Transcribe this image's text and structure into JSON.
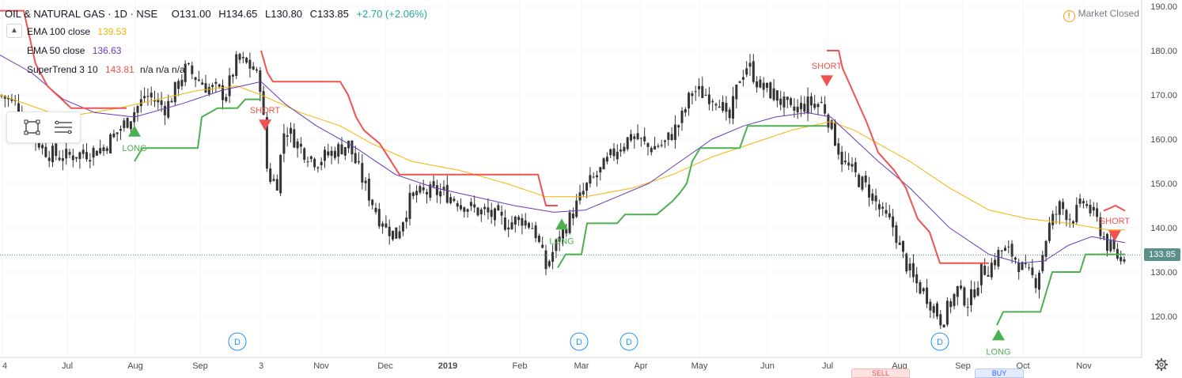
{
  "header": {
    "symbol": "OIL & NATURAL GAS · 1D · NSE",
    "open": "O131.00",
    "high": "H134.65",
    "low": "L130.80",
    "close": "C133.85",
    "change": "+2.70 (+2.06%)"
  },
  "indicators": [
    {
      "label": "EMA 100 close",
      "value": "139.53",
      "color": "#f5b400"
    },
    {
      "label": "EMA 50 close",
      "value": "136.63",
      "color": "#673ab7"
    },
    {
      "label": "SuperTrend 3 10",
      "value": "143.81",
      "extra": "n/a n/a n/a",
      "color": "#ef5350"
    }
  ],
  "status": {
    "market": "Market Closed"
  },
  "last_price_tag": "133.85",
  "icons": {
    "alert": "warning-icon",
    "collapse": "chevron-up-icon",
    "settings": "gear-icon",
    "rect_tool": "rectangle-tool-icon",
    "lines_tool": "horizontal-lines-icon"
  },
  "colors": {
    "up": "#26a69a",
    "down": "#ef5350",
    "ema100": "#f5b400",
    "ema50": "#673ab7",
    "st_down": "#ef5350",
    "st_up": "#4caf50",
    "candle": "#333333"
  },
  "bottom_tabs": {
    "sell": "SELL",
    "buy": "BUY"
  },
  "chart_data": {
    "type": "candlestick",
    "ylim": [
      113,
      191
    ],
    "y_ticks": [
      120,
      130,
      140,
      150,
      160,
      170,
      180,
      190
    ],
    "y_tick_labels": [
      "120.00",
      "130.00",
      "140.00",
      "150.00",
      "160.00",
      "170.00",
      "180.00",
      "190.00"
    ],
    "x_ticks": [
      "4",
      "Jul",
      "Aug",
      "Sep",
      "3",
      "Nov",
      "Dec",
      "2019",
      "Feb",
      "Mar",
      "Apr",
      "May",
      "Jun",
      "Jul",
      "Aug",
      "Sep",
      "Oct",
      "Nov"
    ],
    "x_tick_bold": [
      false,
      false,
      false,
      false,
      false,
      false,
      false,
      true,
      false,
      false,
      false,
      false,
      false,
      false,
      false,
      false,
      false,
      false
    ],
    "grid": true,
    "last_price": 133.85,
    "price_path": [
      [
        0,
        170
      ],
      [
        20,
        168
      ],
      [
        45,
        160
      ],
      [
        60,
        157
      ],
      [
        80,
        156
      ],
      [
        110,
        157
      ],
      [
        130,
        158
      ],
      [
        160,
        164
      ],
      [
        185,
        170
      ],
      [
        210,
        167
      ],
      [
        235,
        176
      ],
      [
        260,
        172
      ],
      [
        285,
        170
      ],
      [
        300,
        178
      ],
      [
        320,
        176
      ],
      [
        330,
        172
      ],
      [
        338,
        152
      ],
      [
        350,
        150
      ],
      [
        360,
        163
      ],
      [
        380,
        158
      ],
      [
        400,
        155
      ],
      [
        420,
        157
      ],
      [
        440,
        159
      ],
      [
        460,
        150
      ],
      [
        480,
        142
      ],
      [
        500,
        138
      ],
      [
        520,
        147
      ],
      [
        540,
        148
      ],
      [
        560,
        148
      ],
      [
        580,
        146
      ],
      [
        600,
        144
      ],
      [
        620,
        143
      ],
      [
        640,
        141
      ],
      [
        660,
        142
      ],
      [
        675,
        140
      ],
      [
        690,
        131
      ],
      [
        705,
        137
      ],
      [
        720,
        142
      ],
      [
        740,
        149
      ],
      [
        760,
        153
      ],
      [
        780,
        158
      ],
      [
        800,
        161
      ],
      [
        820,
        158
      ],
      [
        840,
        159
      ],
      [
        860,
        164
      ],
      [
        875,
        171
      ],
      [
        895,
        170
      ],
      [
        910,
        169
      ],
      [
        920,
        163
      ],
      [
        935,
        174
      ],
      [
        945,
        177
      ],
      [
        960,
        172
      ],
      [
        980,
        170
      ],
      [
        1000,
        166
      ],
      [
        1020,
        168
      ],
      [
        1040,
        168
      ],
      [
        1050,
        163
      ],
      [
        1065,
        155
      ],
      [
        1080,
        152
      ],
      [
        1100,
        148
      ],
      [
        1115,
        143
      ],
      [
        1130,
        140
      ],
      [
        1140,
        134
      ],
      [
        1155,
        128
      ],
      [
        1170,
        125
      ],
      [
        1190,
        119
      ],
      [
        1210,
        126
      ],
      [
        1225,
        123
      ],
      [
        1240,
        130
      ],
      [
        1255,
        132
      ],
      [
        1265,
        135
      ],
      [
        1280,
        134
      ],
      [
        1295,
        130
      ],
      [
        1310,
        128
      ],
      [
        1325,
        140
      ],
      [
        1340,
        145
      ],
      [
        1355,
        142
      ],
      [
        1370,
        146
      ],
      [
        1385,
        142
      ],
      [
        1400,
        136
      ],
      [
        1415,
        133
      ],
      [
        1422,
        133.85
      ]
    ],
    "ema100": [
      [
        0,
        170
      ],
      [
        80,
        165
      ],
      [
        150,
        167
      ],
      [
        200,
        169
      ],
      [
        250,
        171
      ],
      [
        300,
        172
      ],
      [
        330,
        170
      ],
      [
        380,
        166
      ],
      [
        430,
        163
      ],
      [
        470,
        159
      ],
      [
        520,
        155
      ],
      [
        580,
        153
      ],
      [
        640,
        150
      ],
      [
        690,
        147
      ],
      [
        740,
        147
      ],
      [
        800,
        149
      ],
      [
        850,
        152
      ],
      [
        900,
        156
      ],
      [
        950,
        159
      ],
      [
        1000,
        162
      ],
      [
        1050,
        164
      ],
      [
        1080,
        162
      ],
      [
        1110,
        159
      ],
      [
        1150,
        155
      ],
      [
        1200,
        149
      ],
      [
        1250,
        144
      ],
      [
        1300,
        142
      ],
      [
        1350,
        141
      ],
      [
        1400,
        139.53
      ],
      [
        1422,
        139.53
      ]
    ],
    "ema50": [
      [
        0,
        179
      ],
      [
        40,
        175
      ],
      [
        80,
        169
      ],
      [
        120,
        166
      ],
      [
        170,
        165
      ],
      [
        230,
        168
      ],
      [
        280,
        171
      ],
      [
        330,
        173
      ],
      [
        360,
        168
      ],
      [
        400,
        163
      ],
      [
        450,
        158
      ],
      [
        500,
        152
      ],
      [
        550,
        149
      ],
      [
        600,
        147
      ],
      [
        650,
        145
      ],
      [
        700,
        143.5
      ],
      [
        740,
        144
      ],
      [
        780,
        147
      ],
      [
        820,
        150
      ],
      [
        860,
        155
      ],
      [
        900,
        160
      ],
      [
        940,
        163
      ],
      [
        980,
        165
      ],
      [
        1020,
        166
      ],
      [
        1050,
        165
      ],
      [
        1080,
        160
      ],
      [
        1110,
        155
      ],
      [
        1150,
        149
      ],
      [
        1200,
        140
      ],
      [
        1250,
        134
      ],
      [
        1290,
        132
      ],
      [
        1320,
        132.5
      ],
      [
        1350,
        136
      ],
      [
        1380,
        138
      ],
      [
        1422,
        136.63
      ]
    ],
    "supertrend_down": [
      [
        [
          0,
          189
        ],
        [
          30,
          189
        ],
        [
          45,
          177
        ],
        [
          60,
          172
        ],
        [
          90,
          167
        ],
        [
          160,
          167
        ]
      ],
      [
        [
          330,
          180
        ],
        [
          338,
          175
        ],
        [
          345,
          173
        ],
        [
          430,
          173
        ],
        [
          440,
          170
        ],
        [
          450,
          165
        ],
        [
          460,
          162
        ],
        [
          480,
          159
        ],
        [
          505,
          152
        ],
        [
          680,
          152
        ],
        [
          690,
          145
        ],
        [
          705,
          145
        ]
      ],
      [
        [
          1045,
          180
        ],
        [
          1060,
          180
        ],
        [
          1065,
          176
        ],
        [
          1080,
          170
        ],
        [
          1095,
          164
        ],
        [
          1110,
          157
        ],
        [
          1130,
          153
        ],
        [
          1145,
          149
        ],
        [
          1160,
          142
        ],
        [
          1175,
          139
        ],
        [
          1188,
          132
        ],
        [
          1250,
          132
        ]
      ],
      [
        [
          1395,
          143.81
        ],
        [
          1410,
          145
        ],
        [
          1422,
          143.81
        ]
      ]
    ],
    "supertrend_up": [
      [
        [
          170,
          155
        ],
        [
          180,
          158
        ],
        [
          250,
          158
        ],
        [
          255,
          165
        ],
        [
          265,
          166
        ],
        [
          275,
          167
        ],
        [
          300,
          167
        ],
        [
          310,
          169
        ],
        [
          330,
          169
        ]
      ],
      [
        [
          705,
          131
        ],
        [
          715,
          134
        ],
        [
          735,
          134
        ],
        [
          742,
          141
        ],
        [
          780,
          141
        ],
        [
          790,
          143
        ],
        [
          830,
          143
        ],
        [
          850,
          146
        ],
        [
          860,
          148
        ],
        [
          868,
          150
        ],
        [
          875,
          155
        ],
        [
          885,
          158
        ],
        [
          935,
          158
        ],
        [
          945,
          163
        ],
        [
          1045,
          163
        ]
      ],
      [
        [
          1260,
          118
        ],
        [
          1268,
          121
        ],
        [
          1315,
          121
        ],
        [
          1330,
          130
        ],
        [
          1365,
          130
        ],
        [
          1372,
          134
        ],
        [
          1422,
          134
        ]
      ]
    ],
    "signals": [
      {
        "label": "LONG",
        "type": "long",
        "x": 170,
        "y": 162
      },
      {
        "label": "SHORT",
        "type": "short",
        "x": 335,
        "y": 163
      },
      {
        "label": "LONG",
        "type": "long",
        "x": 710,
        "y": 141
      },
      {
        "label": "SHORT",
        "type": "short",
        "x": 1045,
        "y": 173
      },
      {
        "label": "LONG",
        "type": "long",
        "x": 1262,
        "y": 116
      },
      {
        "label": "SHORT",
        "type": "short",
        "x": 1409,
        "y": 138
      }
    ],
    "dividends": [
      {
        "label": "D",
        "x": 300
      },
      {
        "label": "D",
        "x": 732
      },
      {
        "label": "D",
        "x": 795
      },
      {
        "label": "D",
        "x": 1188
      }
    ]
  }
}
